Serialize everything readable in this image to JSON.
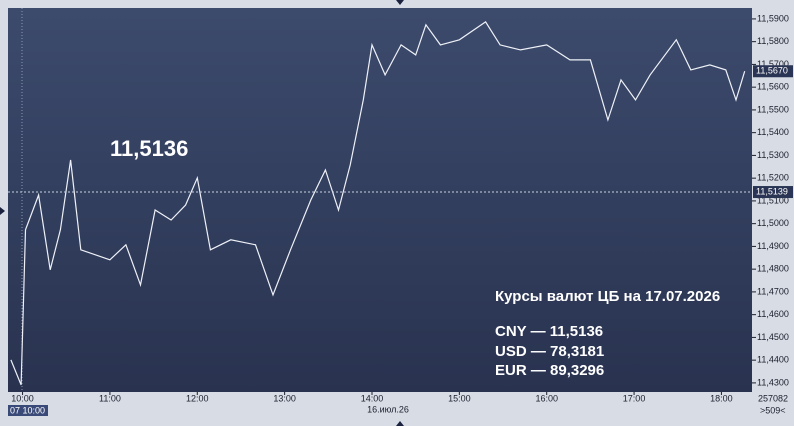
{
  "chart_data": {
    "type": "line",
    "x": [
      "09:52",
      "09:59",
      "10:02",
      "10:11",
      "10:19",
      "10:26",
      "10:33",
      "10:40",
      "10:50",
      "11:00",
      "11:11",
      "11:21",
      "11:31",
      "11:42",
      "11:52",
      "12:00",
      "12:09",
      "12:23",
      "12:40",
      "12:52",
      "13:04",
      "13:18",
      "13:28",
      "13:37",
      "13:45",
      "13:54",
      "14:00",
      "14:09",
      "14:20",
      "14:30",
      "14:37",
      "14:47",
      "15:00",
      "15:18",
      "15:28",
      "15:42",
      "16:00",
      "16:16",
      "16:30",
      "16:42",
      "16:51",
      "17:01",
      "17:11",
      "17:29",
      "17:39",
      "17:52",
      "18:03",
      "18:10",
      "18:16"
    ],
    "series": [
      {
        "color": "#eef1f7",
        "values": [
          11.4401,
          11.4291,
          11.4973,
          11.5126,
          11.4797,
          11.4973,
          11.528,
          11.4885,
          11.4863,
          11.4841,
          11.4907,
          11.4731,
          11.506,
          11.5016,
          11.5082,
          11.5201,
          11.4885,
          11.4929,
          11.4907,
          11.4687,
          11.4885,
          11.5104,
          11.5236,
          11.506,
          11.5258,
          11.5544,
          11.5786,
          11.5654,
          11.5786,
          11.5742,
          11.5874,
          11.5786,
          11.5808,
          11.5887,
          11.5786,
          11.5764,
          11.5786,
          11.572,
          11.572,
          11.5456,
          11.5632,
          11.5544,
          11.5654,
          11.5808,
          11.5676,
          11.5698,
          11.5676,
          11.5544,
          11.567
        ]
      }
    ],
    "xlim": [
      "09:50",
      "18:21"
    ],
    "xticks": [
      "10:00",
      "11:00",
      "12:00",
      "13:00",
      "14:00",
      "15:00",
      "16:00",
      "17:00",
      "18:00"
    ],
    "ylim": [
      11.426,
      11.5948
    ],
    "yticks": [
      {
        "value": 11.43,
        "label": "11,4300"
      },
      {
        "value": 11.44,
        "label": "11,4400"
      },
      {
        "value": 11.45,
        "label": "11,4500"
      },
      {
        "value": 11.46,
        "label": "11,4600"
      },
      {
        "value": 11.47,
        "label": "11,4700"
      },
      {
        "value": 11.48,
        "label": "11,4800"
      },
      {
        "value": 11.49,
        "label": "11,4900"
      },
      {
        "value": 11.5,
        "label": "11,5000"
      },
      {
        "value": 11.51,
        "label": "11,5100"
      },
      {
        "value": 11.52,
        "label": "11,5200"
      },
      {
        "value": 11.53,
        "label": "11,5300"
      },
      {
        "value": 11.54,
        "label": "11,5400"
      },
      {
        "value": 11.55,
        "label": "11,5500"
      },
      {
        "value": 11.56,
        "label": "11,5600"
      },
      {
        "value": 11.57,
        "label": "11,5700"
      },
      {
        "value": 11.58,
        "label": "11,5800"
      },
      {
        "value": 11.59,
        "label": "11,5900"
      }
    ],
    "annotations": {
      "big_value": "11,5136",
      "rates_title": "Курсы валют ЦБ на 17.07.2026",
      "rates": [
        "CNY — 11,5136",
        "USD — 78,3181",
        "EUR — 89,3296"
      ],
      "price_marker": {
        "value": 11.567,
        "label": "11,5670"
      },
      "current_marker": {
        "value": 11.5139,
        "label": "11,5139"
      },
      "date_label": "16.июл.26",
      "cursor_time": "07 10:00",
      "volume": "257082",
      "count": ">509<"
    }
  }
}
